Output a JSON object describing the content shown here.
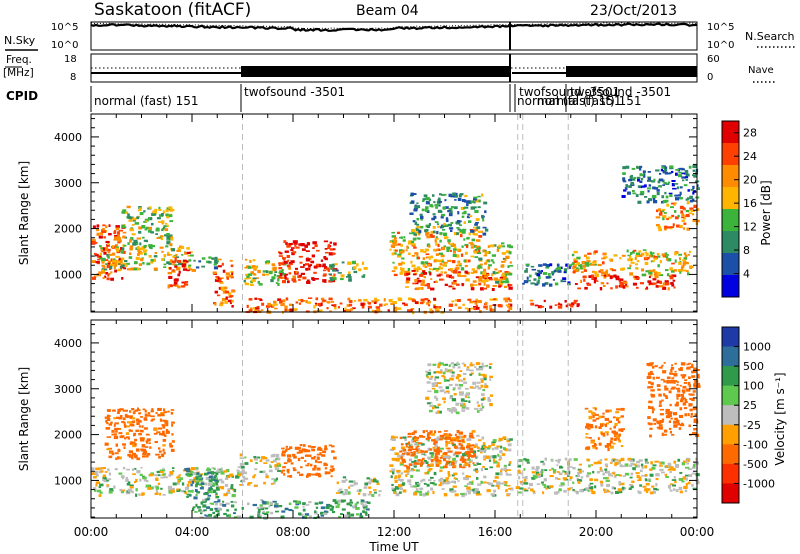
{
  "header": {
    "station": "Saskatoon (fitACF)",
    "beam": "Beam 04",
    "date": "23/Oct/2013"
  },
  "noise_panel": {
    "left_label": "N.Sky",
    "right_label": "N.Search",
    "left_ticks": [
      "10^5",
      "10^0"
    ],
    "right_ticks": [
      "10^5",
      "10^0"
    ]
  },
  "freq_panel": {
    "left_label_1": "Freq.",
    "left_label_2": "[MHz]",
    "right_label": "Nave",
    "left_ticks": [
      "18",
      "8"
    ],
    "right_ticks": [
      "60",
      "0"
    ]
  },
  "cpid": {
    "label": "CPID",
    "segments": [
      {
        "text": "normal (fast) 151"
      },
      {
        "text": "twofsound -3501"
      },
      {
        "text": "twofsound -3501"
      },
      {
        "text": "normal (fast) 151"
      },
      {
        "text": "twofsound -3501"
      },
      {
        "text": "normal (fast) 151"
      }
    ]
  },
  "power_panel": {
    "ylabel": "Slant Range [km]",
    "colorbar_label": "Power [dB]",
    "colorbar_ticks": [
      "28",
      "24",
      "20",
      "16",
      "12",
      "8",
      "4"
    ],
    "colorbar_colors": [
      "#e00000",
      "#ff4000",
      "#ff8c00",
      "#ffb400",
      "#3cb43c",
      "#2e8a62",
      "#1c4fa8",
      "#0000e0"
    ]
  },
  "velocity_panel": {
    "ylabel": "Slant Range [km]",
    "colorbar_label": "Velocity [m s⁻¹]",
    "colorbar_ticks": [
      "1000",
      "500",
      "100",
      "25",
      "-25",
      "-100",
      "-500",
      "-1000"
    ],
    "colorbar_colors": [
      "#1d3aa6",
      "#2e6e9a",
      "#2e9a4a",
      "#5fc84e",
      "#bdbdbd",
      "#ffa000",
      "#ff6a00",
      "#ff3000",
      "#e00000"
    ]
  },
  "axes": {
    "ytick_labels": [
      "4000",
      "3000",
      "2000",
      "1000"
    ],
    "xtick_labels": [
      "00:00",
      "04:00",
      "08:00",
      "12:00",
      "16:00",
      "20:00",
      "00:00"
    ],
    "xlabel": "Time UT"
  },
  "chart_data": [
    {
      "type": "heatmap",
      "quantity": "Power",
      "title": "Saskatoon (fitACF) Beam 04 23/Oct/2013",
      "xlabel": "Time UT",
      "ylabel": "Slant Range [km]",
      "colorbar_label": "Power [dB]",
      "x_range_hours": [
        0,
        24
      ],
      "xtick_hours": [
        0,
        4,
        8,
        12,
        16,
        20,
        24
      ],
      "ylim_km": [
        180,
        4500
      ],
      "yticks_km": [
        1000,
        2000,
        3000,
        4000
      ],
      "colorbar_range_db": [
        0,
        30
      ],
      "colorbar_ticks_db": [
        4,
        8,
        12,
        16,
        20,
        24,
        28
      ],
      "cpid_boundaries_hours": [
        6.0,
        16.9,
        17.1,
        18.9
      ],
      "regions": [
        {
          "t": [
            0.0,
            1.3
          ],
          "r": [
            900,
            2100
          ],
          "db": 24
        },
        {
          "t": [
            0.3,
            4.0
          ],
          "r": [
            1100,
            1650
          ],
          "db": 16
        },
        {
          "t": [
            1.2,
            3.2
          ],
          "r": [
            1600,
            2500
          ],
          "db": 14
        },
        {
          "t": [
            3.0,
            3.8
          ],
          "r": [
            750,
            1500
          ],
          "db": 26
        },
        {
          "t": [
            4.0,
            5.0
          ],
          "r": [
            1150,
            1400
          ],
          "db": 10
        },
        {
          "t": [
            4.8,
            5.6
          ],
          "r": [
            300,
            1350
          ],
          "db": 22
        },
        {
          "t": [
            6.0,
            7.6
          ],
          "r": [
            800,
            1350
          ],
          "db": 16
        },
        {
          "t": [
            7.4,
            9.6
          ],
          "r": [
            850,
            1750
          ],
          "db": 28
        },
        {
          "t": [
            9.4,
            10.8
          ],
          "r": [
            900,
            1300
          ],
          "db": 12
        },
        {
          "t": [
            11.8,
            15.4
          ],
          "r": [
            1000,
            2000
          ],
          "db": 18
        },
        {
          "t": [
            12.2,
            16.6
          ],
          "r": [
            700,
            1100
          ],
          "db": 24
        },
        {
          "t": [
            12.6,
            15.6
          ],
          "r": [
            1900,
            2800
          ],
          "db": 10
        },
        {
          "t": [
            15.3,
            16.6
          ],
          "r": [
            850,
            1700
          ],
          "db": 16
        },
        {
          "t": [
            17.0,
            18.9
          ],
          "r": [
            800,
            1250
          ],
          "db": 8
        },
        {
          "t": [
            19.0,
            23.8
          ],
          "r": [
            1000,
            1550
          ],
          "db": 18
        },
        {
          "t": [
            19.0,
            23.2
          ],
          "r": [
            700,
            1000
          ],
          "db": 26
        },
        {
          "t": [
            22.3,
            24.0
          ],
          "r": [
            2000,
            2600
          ],
          "db": 20
        },
        {
          "t": [
            21.0,
            24.0
          ],
          "r": [
            2600,
            3400
          ],
          "db": 8
        },
        {
          "t": [
            6.0,
            16.6
          ],
          "r": [
            200,
            500
          ],
          "db": 22
        },
        {
          "t": [
            17.3,
            19.4
          ],
          "r": [
            300,
            450
          ],
          "db": 28
        }
      ]
    },
    {
      "type": "heatmap",
      "quantity": "Velocity",
      "xlabel": "Time UT",
      "ylabel": "Slant Range [km]",
      "colorbar_label": "Velocity [m s⁻¹]",
      "x_range_hours": [
        0,
        24
      ],
      "xtick_hours": [
        0,
        4,
        8,
        12,
        16,
        20,
        24
      ],
      "ylim_km": [
        180,
        4500
      ],
      "yticks_km": [
        1000,
        2000,
        3000,
        4000
      ],
      "colorbar_ticks_ms": [
        -1000,
        -500,
        -100,
        -25,
        25,
        100,
        500,
        1000
      ],
      "regions": [
        {
          "t": [
            0.0,
            5.8
          ],
          "r": [
            700,
            1300
          ],
          "v": 0
        },
        {
          "t": [
            0.5,
            3.2
          ],
          "r": [
            1500,
            2600
          ],
          "v": -150
        },
        {
          "t": [
            3.6,
            5.0
          ],
          "r": [
            600,
            1300
          ],
          "v": 80
        },
        {
          "t": [
            5.8,
            7.4
          ],
          "r": [
            900,
            1600
          ],
          "v": 0
        },
        {
          "t": [
            7.5,
            9.6
          ],
          "r": [
            1100,
            1800
          ],
          "v": -200
        },
        {
          "t": [
            9.6,
            11.4
          ],
          "r": [
            700,
            1100
          ],
          "v": 0
        },
        {
          "t": [
            11.8,
            16.6
          ],
          "r": [
            700,
            2000
          ],
          "v": 0
        },
        {
          "t": [
            12.2,
            15.2
          ],
          "r": [
            1300,
            2100
          ],
          "v": -150
        },
        {
          "t": [
            16.8,
            24.0
          ],
          "r": [
            750,
            1500
          ],
          "v": 0
        },
        {
          "t": [
            19.5,
            21.0
          ],
          "r": [
            1700,
            2600
          ],
          "v": -120
        },
        {
          "t": [
            22.0,
            24.0
          ],
          "r": [
            2000,
            3600
          ],
          "v": -300
        },
        {
          "t": [
            13.2,
            15.8
          ],
          "r": [
            2500,
            3600
          ],
          "v": 0
        },
        {
          "t": [
            4.0,
            11.0
          ],
          "r": [
            200,
            600
          ],
          "v": 60
        }
      ]
    },
    {
      "type": "line",
      "quantity": "Noise (N.Sky, N.Search)",
      "x_range_hours": [
        0,
        24
      ],
      "y_scale": "log",
      "ylim": [
        1,
        100000
      ]
    },
    {
      "type": "line",
      "quantity": "Frequency [MHz] / Nave",
      "x_range_hours": [
        0,
        24
      ],
      "freq_ylim_mhz": [
        8,
        18
      ],
      "nave_ylim": [
        0,
        60
      ]
    }
  ]
}
